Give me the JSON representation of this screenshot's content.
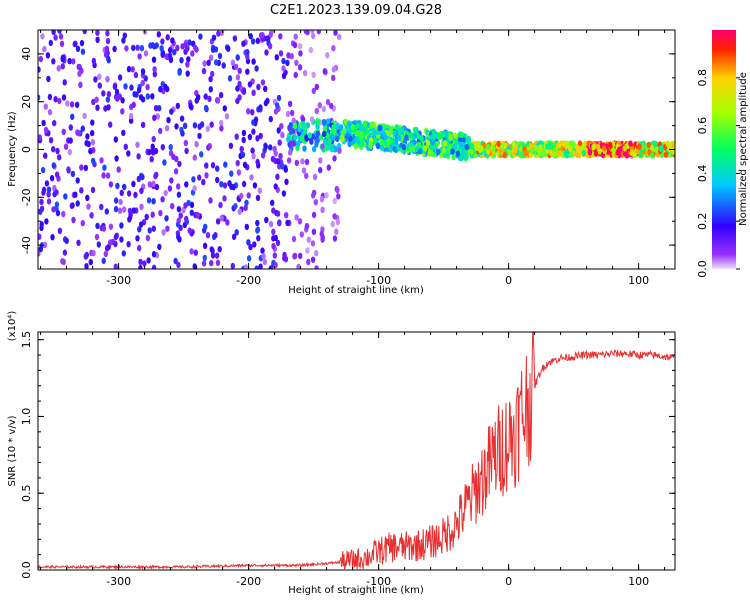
{
  "figure": {
    "title": "C2E1.2023.139.09.04.G28"
  },
  "chart_data": [
    {
      "type": "heatmap",
      "xlabel": "Height of straight line (km)",
      "ylabel": "Frequency (Hz)",
      "xlim": [
        -362,
        128
      ],
      "ylim": [
        -50,
        50
      ],
      "xticks": [
        -300,
        -200,
        -100,
        0,
        100
      ],
      "yticks": [
        -40,
        -20,
        0,
        20,
        40
      ],
      "colorbar": {
        "label": "Normalized spectral amplitude",
        "range": [
          0,
          1
        ],
        "ticks": [
          "0.0",
          "0.2",
          "0.4",
          "0.6",
          "0.8"
        ],
        "colormap": "rainbow (purple → blue → cyan → green → yellow → red)"
      },
      "description_of_field": [
        {
          "x_range": [
            -362,
            -170
          ],
          "y_range": [
            -50,
            50
          ],
          "amplitude": "0.05–0.35, scattered speckle"
        },
        {
          "x_range": [
            -170,
            -30
          ],
          "y_range": [
            -5,
            12
          ],
          "center_freq": 6,
          "amplitude": "0.3–0.6"
        },
        {
          "x_range": [
            -30,
            128
          ],
          "y_range": [
            -3,
            4
          ],
          "center_freq": 0,
          "amplitude": "0.6–1.0, peak near x=80"
        }
      ]
    },
    {
      "type": "line",
      "xlabel": "Height of straight line (km)",
      "ylabel": "SNR (10 * v/v)",
      "yscale_label": "(x10⁴)",
      "xlim": [
        -362,
        128
      ],
      "ylim": [
        0,
        1.55
      ],
      "xticks": [
        -300,
        -200,
        -100,
        0,
        100
      ],
      "yticks": [
        "0.0",
        "0.5",
        "1.0",
        "1.5"
      ],
      "series": [
        {
          "color": "#e83030",
          "x": [
            -362,
            -300,
            -250,
            -200,
            -160,
            -130,
            -110,
            -100,
            -90,
            -80,
            -70,
            -60,
            -50,
            -40,
            -30,
            -20,
            -10,
            -5,
            0,
            5,
            10,
            15,
            20,
            25,
            30,
            40,
            50,
            60,
            70,
            80,
            90,
            100,
            110,
            120,
            128
          ],
          "y": [
            0.02,
            0.02,
            0.02,
            0.03,
            0.03,
            0.05,
            0.08,
            0.12,
            0.15,
            0.15,
            0.16,
            0.18,
            0.22,
            0.3,
            0.45,
            0.6,
            0.75,
            0.8,
            0.85,
            0.9,
            1.0,
            1.1,
            1.2,
            1.3,
            1.35,
            1.38,
            1.39,
            1.4,
            1.4,
            1.41,
            1.41,
            1.4,
            1.4,
            1.39,
            1.38
          ]
        }
      ]
    }
  ]
}
